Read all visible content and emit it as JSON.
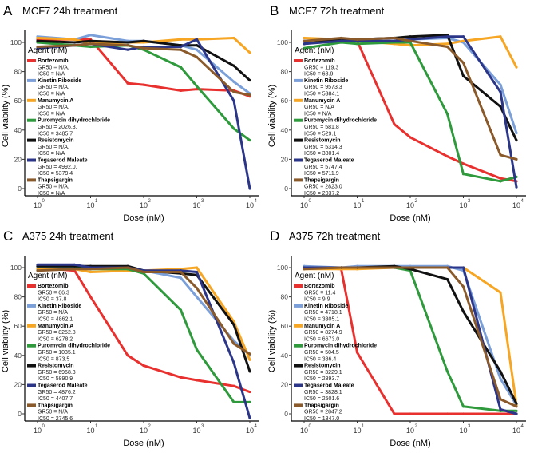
{
  "colors": {
    "Bortezomib": "#e8312f",
    "Kinetin Riboside": "#7b9fd9",
    "Manumycin A": "#f6a623",
    "Puromycin dihydrochloride": "#2e9a3c",
    "Resistomycin": "#111111",
    "Tegaserod Maleate": "#2b3689",
    "Thapsigargin": "#8b5a2b"
  },
  "chart_data": [
    {
      "panel_label": "A",
      "title": "MCF7 24h treatment",
      "type": "line",
      "xlabel": "Dose (nM)",
      "ylabel": "Cell viability (%)",
      "x_scale": "log",
      "xlim": [
        1,
        10000
      ],
      "ylim": [
        0,
        100
      ],
      "x_ticks": [
        {
          "base": "10",
          "exp": "0"
        },
        {
          "base": "10",
          "exp": "1"
        },
        {
          "base": "10",
          "exp": "2"
        },
        {
          "base": "10",
          "exp": "3"
        },
        {
          "base": "10",
          "exp": "4"
        }
      ],
      "y_ticks": [
        "0",
        "20",
        "40",
        "60",
        "80",
        "100"
      ],
      "legend_title": "Agent (nM)",
      "legend_position": "left-inside",
      "x": [
        1,
        5,
        10,
        50,
        100,
        500,
        1000,
        5000,
        10000
      ],
      "series": [
        {
          "name": "Bortezomib",
          "gr50": "GR50 = N/A,",
          "ic50": "IC50 = N/A",
          "values": [
            102,
            102,
            102,
            72,
            71,
            67,
            68,
            67,
            63
          ]
        },
        {
          "name": "Kinetin Riboside",
          "gr50": "GR50 = N/A,",
          "ic50": "IC50 = N/A",
          "values": [
            104,
            102,
            105,
            101,
            101,
            98,
            95,
            73,
            65
          ]
        },
        {
          "name": "Manumycin A",
          "gr50": "GR50 = N/A,",
          "ic50": "IC50 = N/A",
          "values": [
            103,
            102,
            99,
            100,
            100,
            102,
            102,
            103,
            93
          ]
        },
        {
          "name": "Puromycin dihydrochloride",
          "gr50": "GR50 = 2026.3,",
          "ic50": "IC50 = 3485.7",
          "values": [
            100,
            98,
            97,
            98,
            95,
            83,
            70,
            41,
            33
          ]
        },
        {
          "name": "Resistomycin",
          "gr50": "GR50 = N/A,",
          "ic50": "IC50 = N/A",
          "values": [
            101,
            100,
            101,
            100,
            101,
            98,
            98,
            84,
            74
          ]
        },
        {
          "name": "Tegaserod Maleate",
          "gr50": "GR50 = 4992.0,",
          "ic50": "IC50 = 5379.4",
          "values": [
            96,
            98,
            99,
            95,
            97,
            97,
            102,
            60,
            0
          ]
        },
        {
          "name": "Thapsigargin",
          "gr50": "GR50 = N/A,",
          "ic50": "IC50 = N/A",
          "values": [
            97,
            98,
            99,
            98,
            96,
            95,
            90,
            66,
            64
          ]
        }
      ]
    },
    {
      "panel_label": "B",
      "title": "MCF7 72h treatment",
      "type": "line",
      "xlabel": "Dose (nM)",
      "ylabel": "Cell viability (%)",
      "x_scale": "log",
      "xlim": [
        1,
        10000
      ],
      "ylim": [
        0,
        100
      ],
      "x_ticks": [
        {
          "base": "10",
          "exp": "0"
        },
        {
          "base": "10",
          "exp": "1"
        },
        {
          "base": "10",
          "exp": "2"
        },
        {
          "base": "10",
          "exp": "3"
        },
        {
          "base": "10",
          "exp": "4"
        }
      ],
      "y_ticks": [
        "0",
        "20",
        "40",
        "60",
        "80",
        "100"
      ],
      "legend_title": "Agent (nM)",
      "legend_position": "left-inside",
      "x": [
        1,
        5,
        10,
        50,
        100,
        500,
        1000,
        5000,
        10000
      ],
      "series": [
        {
          "name": "Bortezomib",
          "gr50": "GR50 = 119.3",
          "ic50": "IC50 = 68.9",
          "values": [
            101,
            102,
            101,
            44,
            35,
            22,
            17,
            7,
            5
          ]
        },
        {
          "name": "Kinetin Riboside",
          "gr50": "GR50 = 9573.3",
          "ic50": "IC50 = 5384.1",
          "values": [
            101,
            102,
            102,
            103,
            102,
            103,
            100,
            71,
            38
          ]
        },
        {
          "name": "Manumycin A",
          "gr50": "GR50 = N/A",
          "ic50": "IC50 = N/A",
          "values": [
            103,
            102,
            101,
            99,
            98,
            99,
            101,
            104,
            83
          ]
        },
        {
          "name": "Puromycin dihydrochloride",
          "gr50": "GR50 = 581.8",
          "ic50": "IC50 = 529.1",
          "values": [
            96,
            100,
            99,
            100,
            100,
            51,
            10,
            5,
            8
          ]
        },
        {
          "name": "Resistomycin",
          "gr50": "GR50 = 5314.3",
          "ic50": "IC50 = 3801.4",
          "values": [
            99,
            102,
            102,
            103,
            104,
            105,
            77,
            56,
            33
          ]
        },
        {
          "name": "Tegaserod Maleate",
          "gr50": "GR50 = 5747.4",
          "ic50": "IC50 = 5711.9",
          "values": [
            99,
            101,
            101,
            101,
            102,
            104,
            104,
            66,
            1
          ]
        },
        {
          "name": "Thapsigargin",
          "gr50": "GR50 = 2823.0",
          "ic50": "IC50 = 2037.2",
          "values": [
            101,
            103,
            102,
            103,
            101,
            97,
            86,
            23,
            20
          ]
        }
      ]
    },
    {
      "panel_label": "C",
      "title": "A375 24h treatment",
      "type": "line",
      "xlabel": "Dose (nM)",
      "ylabel": "Cell viability (%)",
      "x_scale": "log",
      "xlim": [
        1,
        10000
      ],
      "ylim": [
        0,
        100
      ],
      "x_ticks": [
        {
          "base": "10",
          "exp": "0"
        },
        {
          "base": "10",
          "exp": "1"
        },
        {
          "base": "10",
          "exp": "2"
        },
        {
          "base": "10",
          "exp": "3"
        },
        {
          "base": "10",
          "exp": "4"
        }
      ],
      "y_ticks": [
        "0",
        "20",
        "40",
        "60",
        "80",
        "100"
      ],
      "legend_title": "Agent (nM)",
      "legend_position": "left-inside",
      "x": [
        1,
        5,
        10,
        50,
        100,
        500,
        1000,
        5000,
        10000
      ],
      "series": [
        {
          "name": "Bortezomib",
          "gr50": "GR50 = 66.3",
          "ic50": "IC50 = 37.8",
          "values": [
            100,
            98,
            80,
            40,
            33,
            25,
            23,
            19,
            15
          ]
        },
        {
          "name": "Kinetin Riboside",
          "gr50": "GR50 = N/A",
          "ic50": "IC50 = 4862.1",
          "values": [
            100,
            100,
            101,
            98,
            98,
            93,
            80,
            50,
            40
          ]
        },
        {
          "name": "Manumycin A",
          "gr50": "GR50 = 8252.8",
          "ic50": "IC50 = 6278.2",
          "values": [
            99,
            99,
            97,
            98,
            98,
            99,
            100,
            63,
            37
          ]
        },
        {
          "name": "Puromycin dihydrochloride",
          "gr50": "GR50 = 1035.1",
          "ic50": "IC50 = 873.5",
          "values": [
            101,
            101,
            99,
            99,
            96,
            71,
            44,
            8,
            8
          ]
        },
        {
          "name": "Resistomycin",
          "gr50": "GR50 = 6968.3",
          "ic50": "IC50 = 5890.9",
          "values": [
            101,
            101,
            101,
            101,
            98,
            96,
            95,
            61,
            29
          ]
        },
        {
          "name": "Tegaserod Maleate",
          "gr50": "GR50 = 4876.2",
          "ic50": "IC50 = 4407.7",
          "values": [
            102,
            102,
            100,
            100,
            98,
            98,
            97,
            35,
            -3
          ]
        },
        {
          "name": "Thapsigargin",
          "gr50": "GR50 = N/A",
          "ic50": "IC50 = 2745.6",
          "values": [
            98,
            99,
            99,
            100,
            97,
            97,
            86,
            48,
            41
          ]
        }
      ]
    },
    {
      "panel_label": "D",
      "title": "A375 72h treatment",
      "type": "line",
      "xlabel": "Dose (nM)",
      "ylabel": "Cell viability (%)",
      "x_scale": "log",
      "xlim": [
        1,
        10000
      ],
      "ylim": [
        0,
        100
      ],
      "x_ticks": [
        {
          "base": "10",
          "exp": "0"
        },
        {
          "base": "10",
          "exp": "1"
        },
        {
          "base": "10",
          "exp": "2"
        },
        {
          "base": "10",
          "exp": "3"
        },
        {
          "base": "10",
          "exp": "4"
        }
      ],
      "y_ticks": [
        "0",
        "20",
        "40",
        "60",
        "80",
        "100"
      ],
      "legend_title": "Agent (nM)",
      "legend_position": "left-inside",
      "x": [
        1,
        5,
        10,
        50,
        100,
        500,
        1000,
        5000,
        10000
      ],
      "series": [
        {
          "name": "Bortezomib",
          "gr50": "GR50 = 11.4",
          "ic50": "IC50 = 9.9",
          "values": [
            100,
            99,
            42,
            0,
            0,
            0,
            0,
            0,
            0
          ]
        },
        {
          "name": "Kinetin Riboside",
          "gr50": "GR50 = 4718.1",
          "ic50": "IC50 = 3305.1",
          "values": [
            101,
            100,
            101,
            101,
            101,
            101,
            98,
            24,
            6
          ]
        },
        {
          "name": "Manumycin A",
          "gr50": "GR50 = 8274.9",
          "ic50": "IC50 = 6673.0",
          "values": [
            99,
            99,
            99,
            100,
            100,
            100,
            100,
            83,
            6
          ]
        },
        {
          "name": "Puromycin dihydrochloride",
          "gr50": "GR50 = 504.5",
          "ic50": "IC50 = 386.4",
          "values": [
            100,
            100,
            100,
            100,
            98,
            29,
            5,
            2,
            2
          ]
        },
        {
          "name": "Resistomycin",
          "gr50": "GR50 = 3229.1",
          "ic50": "IC50 = 2893.7",
          "values": [
            100,
            100,
            100,
            101,
            99,
            92,
            70,
            29,
            7
          ]
        },
        {
          "name": "Tegaserod Maleate",
          "gr50": "GR50 = 3828.1",
          "ic50": "IC50 = 2501.6",
          "values": [
            100,
            100,
            100,
            100,
            100,
            100,
            100,
            3,
            0
          ]
        },
        {
          "name": "Thapsigargin",
          "gr50": "GR50 = 2847.2",
          "ic50": "IC50 = 1847.0",
          "values": [
            99,
            100,
            100,
            100,
            100,
            100,
            87,
            10,
            5
          ]
        }
      ]
    }
  ]
}
